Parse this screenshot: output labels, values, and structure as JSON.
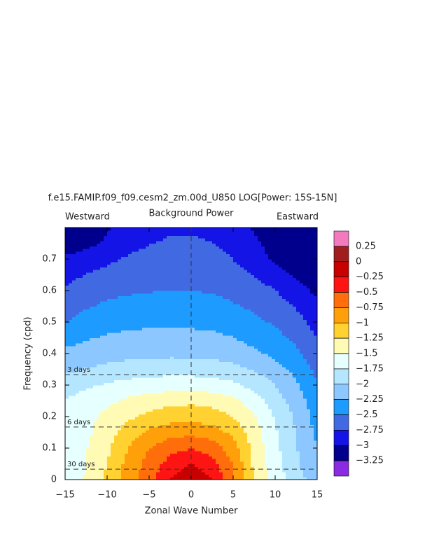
{
  "chart_data": {
    "type": "contour",
    "title": "f.e15.FAMIP.f09_f09.cesm2_zm.00d_U850 LOG[Power: 15S-15N]",
    "subtitle": "Background Power",
    "left_label": "Westward",
    "right_label": "Eastward",
    "x_label": "Zonal Wave Number",
    "y_label": "Frequency (cpd)",
    "xlim": [
      -15,
      15
    ],
    "ylim": [
      0,
      0.8
    ],
    "xticks": [
      {
        "value": -15,
        "label": "−15"
      },
      {
        "value": -10,
        "label": "−10"
      },
      {
        "value": -5,
        "label": "−5"
      },
      0,
      5,
      10,
      15
    ],
    "yticks": [
      0,
      0.1,
      0.2,
      0.3,
      0.4,
      0.5,
      0.6,
      0.7
    ],
    "x_reference": 0,
    "reference_lines": [
      {
        "value": 0.333,
        "label": "3 days"
      },
      {
        "value": 0.167,
        "label": "6 days"
      },
      {
        "value": 0.033,
        "label": "30 days"
      }
    ],
    "levels": [
      {
        "value": 0.25,
        "label": "0.25"
      },
      0,
      {
        "value": -0.25,
        "label": "−0.25"
      },
      {
        "value": -0.5,
        "label": "−0.5"
      },
      {
        "value": -0.75,
        "label": "−0.75"
      },
      {
        "value": -1,
        "label": "−1"
      },
      {
        "value": -1.25,
        "label": "−1.25"
      },
      {
        "value": -1.5,
        "label": "−1.5"
      },
      {
        "value": -1.75,
        "label": "−1.75"
      },
      {
        "value": -2,
        "label": "−2"
      },
      {
        "value": -2.25,
        "label": "−2.25"
      },
      {
        "value": -2.5,
        "label": "−2.5"
      },
      {
        "value": -2.75,
        "label": "−2.75"
      },
      {
        "value": -3,
        "label": "−3"
      },
      {
        "value": -3.25,
        "label": "−3.25"
      }
    ],
    "colors": [
      "#f47ac0",
      "#a01e1e",
      "#c80000",
      "#ff1414",
      "#ff6e0a",
      "#ffa00a",
      "#ffd232",
      "#fffab4",
      "#e6ffff",
      "#b4e6ff",
      "#8cc8ff",
      "#1e9bff",
      "#4169e1",
      "#1414e6",
      "#00008c",
      "#8a2be2"
    ],
    "x": [
      -15,
      -12.5,
      -10,
      -7.5,
      -5,
      -2.5,
      0,
      2.5,
      5,
      7.5,
      10,
      12.5,
      15
    ],
    "y": [
      0,
      0.05,
      0.1,
      0.15,
      0.2,
      0.25,
      0.3,
      0.35,
      0.4,
      0.45,
      0.5,
      0.55,
      0.6,
      0.65,
      0.7,
      0.75,
      0.8
    ],
    "z": [
      [
        -1.62,
        -1.48,
        -1.18,
        -0.87,
        -0.6,
        -0.25,
        -0.05,
        -0.25,
        -0.7,
        -1.27,
        -1.6,
        -1.9,
        -2.1
      ],
      [
        -1.64,
        -1.5,
        -1.25,
        -0.92,
        -0.65,
        -0.4,
        -0.25,
        -0.4,
        -0.76,
        -1.3,
        -1.65,
        -1.95,
        -2.22
      ],
      [
        -1.66,
        -1.52,
        -1.3,
        -1.0,
        -0.75,
        -0.58,
        -0.5,
        -0.62,
        -0.88,
        -1.35,
        -1.68,
        -1.98,
        -2.25
      ],
      [
        -1.68,
        -1.55,
        -1.37,
        -1.13,
        -0.95,
        -0.85,
        -0.81,
        -0.88,
        -1.06,
        -1.38,
        -1.72,
        -2.0,
        -2.3
      ],
      [
        -1.7,
        -1.58,
        -1.43,
        -1.3,
        -1.18,
        -1.1,
        -1.08,
        -1.13,
        -1.25,
        -1.47,
        -1.77,
        -2.05,
        -2.35
      ],
      [
        -1.74,
        -1.66,
        -1.56,
        -1.45,
        -1.38,
        -1.33,
        -1.3,
        -1.34,
        -1.43,
        -1.62,
        -1.88,
        -2.12,
        -2.4
      ],
      [
        -1.85,
        -1.78,
        -1.72,
        -1.66,
        -1.62,
        -1.6,
        -1.6,
        -1.62,
        -1.7,
        -1.82,
        -2.0,
        -2.22,
        -2.47
      ],
      [
        -2.05,
        -1.98,
        -1.93,
        -1.89,
        -1.86,
        -1.85,
        -1.85,
        -1.87,
        -1.92,
        -2.02,
        -2.15,
        -2.32,
        -2.56
      ],
      [
        -2.2,
        -2.15,
        -2.1,
        -2.07,
        -2.05,
        -2.05,
        -2.05,
        -2.07,
        -2.12,
        -2.2,
        -2.3,
        -2.45,
        -2.65
      ],
      [
        -2.33,
        -2.27,
        -2.22,
        -2.19,
        -2.17,
        -2.17,
        -2.17,
        -2.19,
        -2.24,
        -2.32,
        -2.42,
        -2.55,
        -2.75
      ],
      [
        -2.5,
        -2.4,
        -2.34,
        -2.31,
        -2.3,
        -2.3,
        -2.3,
        -2.32,
        -2.36,
        -2.44,
        -2.53,
        -2.66,
        -2.85
      ],
      [
        -2.62,
        -2.52,
        -2.45,
        -2.42,
        -2.4,
        -2.4,
        -2.4,
        -2.42,
        -2.47,
        -2.54,
        -2.63,
        -2.76,
        -2.95
      ],
      [
        -2.72,
        -2.63,
        -2.57,
        -2.53,
        -2.51,
        -2.5,
        -2.5,
        -2.52,
        -2.57,
        -2.64,
        -2.74,
        -2.9,
        -3.05
      ],
      [
        -2.82,
        -2.74,
        -2.67,
        -2.62,
        -2.6,
        -2.58,
        -2.58,
        -2.6,
        -2.66,
        -2.75,
        -2.88,
        -3.05,
        -3.15
      ],
      [
        -2.95,
        -2.87,
        -2.8,
        -2.72,
        -2.67,
        -2.65,
        -2.65,
        -2.67,
        -2.75,
        -2.85,
        -3.05,
        -3.15,
        -3.2
      ],
      [
        -3.15,
        -3.08,
        -2.95,
        -2.82,
        -2.76,
        -2.72,
        -2.72,
        -2.74,
        -2.82,
        -2.95,
        -3.12,
        -3.2,
        -3.22
      ],
      [
        -3.2,
        -3.15,
        -3.02,
        -2.9,
        -2.82,
        -2.78,
        -2.78,
        -2.8,
        -2.9,
        -3.02,
        -3.15,
        -3.2,
        -3.22
      ]
    ]
  }
}
